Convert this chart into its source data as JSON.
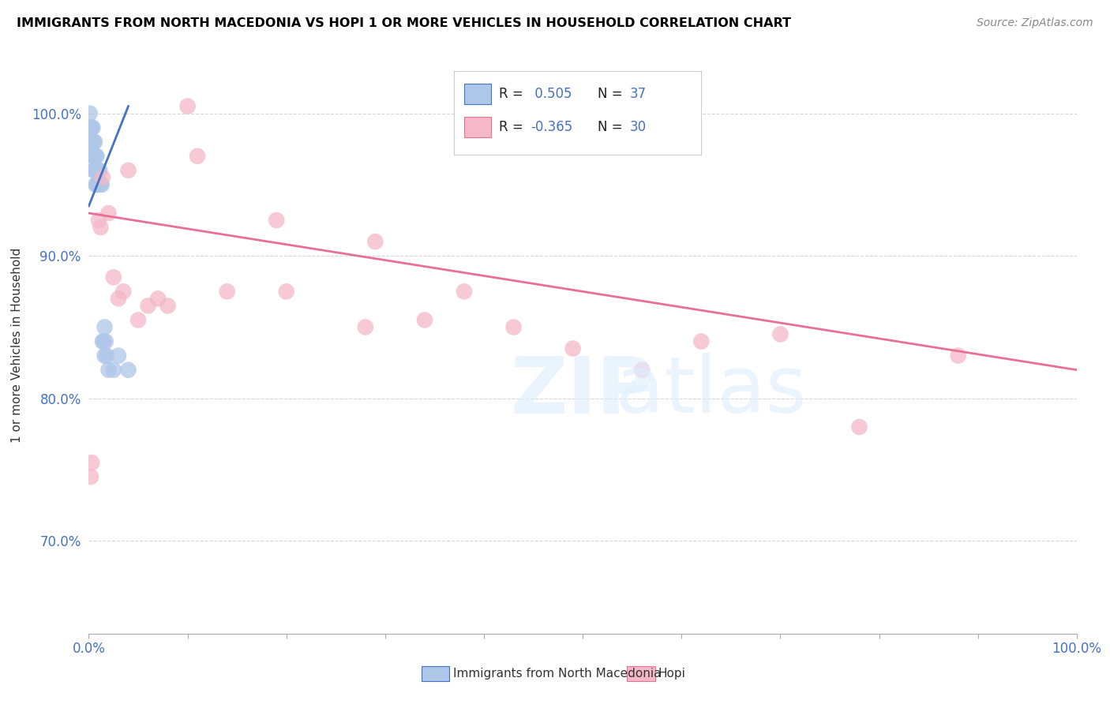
{
  "title": "IMMIGRANTS FROM NORTH MACEDONIA VS HOPI 1 OR MORE VEHICLES IN HOUSEHOLD CORRELATION CHART",
  "source": "Source: ZipAtlas.com",
  "ylabel": "1 or more Vehicles in Household",
  "xlim": [
    0.0,
    1.0
  ],
  "ylim": [
    0.635,
    1.04
  ],
  "yticks": [
    0.7,
    0.8,
    0.9,
    1.0
  ],
  "ytick_labels": [
    "70.0%",
    "80.0%",
    "90.0%",
    "100.0%"
  ],
  "blue_R": 0.505,
  "blue_N": 37,
  "pink_R": -0.365,
  "pink_N": 30,
  "blue_color": "#aec6e8",
  "pink_color": "#f4b8c8",
  "blue_line_color": "#4472c4",
  "pink_line_color": "#e87095",
  "legend_blue_label": "Immigrants from North Macedonia",
  "legend_pink_label": "Hopi",
  "stat_color": "#4472c4",
  "blue_scatter_x": [
    0.001,
    0.001,
    0.002,
    0.002,
    0.003,
    0.003,
    0.003,
    0.004,
    0.004,
    0.004,
    0.005,
    0.005,
    0.005,
    0.006,
    0.006,
    0.006,
    0.007,
    0.007,
    0.007,
    0.008,
    0.008,
    0.009,
    0.009,
    0.01,
    0.011,
    0.012,
    0.013,
    0.014,
    0.015,
    0.016,
    0.016,
    0.017,
    0.018,
    0.02,
    0.025,
    0.03,
    0.04
  ],
  "blue_scatter_y": [
    1.0,
    0.99,
    0.99,
    0.98,
    0.99,
    0.98,
    0.97,
    0.99,
    0.98,
    0.97,
    0.98,
    0.97,
    0.96,
    0.98,
    0.97,
    0.96,
    0.97,
    0.96,
    0.95,
    0.97,
    0.95,
    0.96,
    0.95,
    0.96,
    0.96,
    0.95,
    0.95,
    0.84,
    0.84,
    0.85,
    0.83,
    0.84,
    0.83,
    0.82,
    0.82,
    0.83,
    0.82
  ],
  "pink_scatter_x": [
    0.002,
    0.003,
    0.01,
    0.012,
    0.014,
    0.02,
    0.025,
    0.03,
    0.035,
    0.04,
    0.05,
    0.06,
    0.07,
    0.08,
    0.1,
    0.11,
    0.14,
    0.19,
    0.2,
    0.28,
    0.29,
    0.34,
    0.38,
    0.43,
    0.49,
    0.56,
    0.62,
    0.7,
    0.78,
    0.88
  ],
  "pink_scatter_y": [
    0.745,
    0.755,
    0.925,
    0.92,
    0.955,
    0.93,
    0.885,
    0.87,
    0.875,
    0.96,
    0.855,
    0.865,
    0.87,
    0.865,
    1.005,
    0.97,
    0.875,
    0.925,
    0.875,
    0.85,
    0.91,
    0.855,
    0.875,
    0.85,
    0.835,
    0.82,
    0.84,
    0.845,
    0.78,
    0.83
  ],
  "blue_line_x0": 0.0,
  "blue_line_x1": 0.04,
  "blue_line_y0": 0.935,
  "blue_line_y1": 1.005,
  "pink_line_x0": 0.0,
  "pink_line_x1": 1.0,
  "pink_line_y0": 0.93,
  "pink_line_y1": 0.82,
  "background_color": "#ffffff",
  "grid_color": "#cccccc",
  "title_color": "#000000",
  "source_color": "#888888"
}
